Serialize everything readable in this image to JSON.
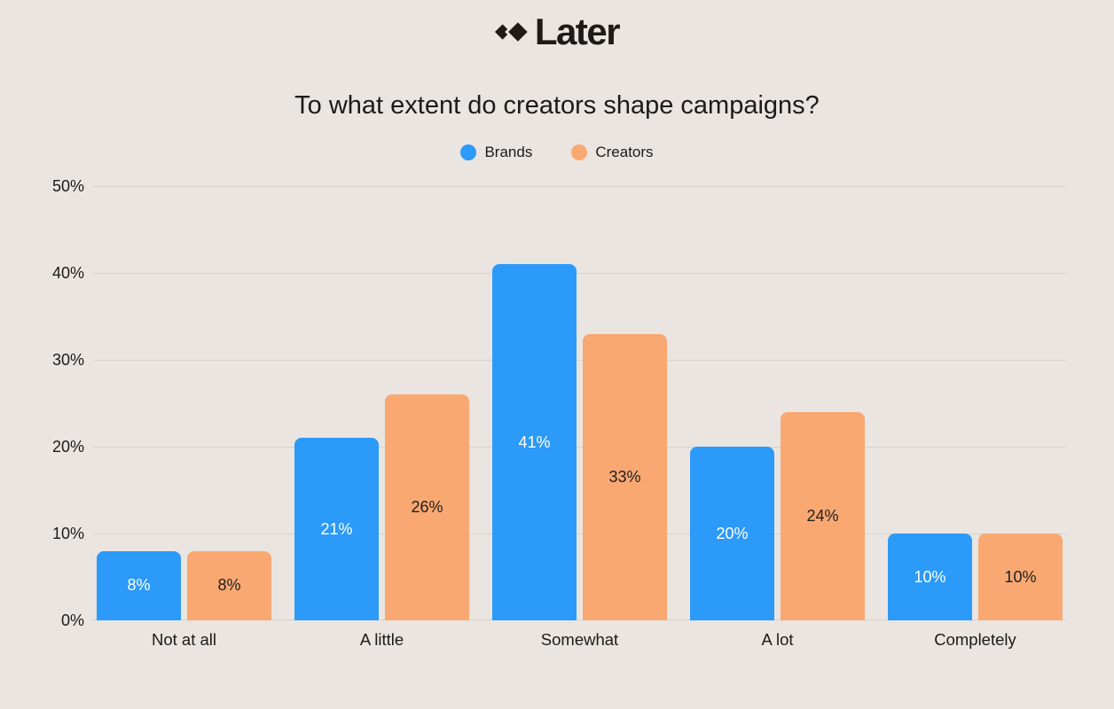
{
  "logo": {
    "text": "Later"
  },
  "theme": {
    "background": "#EAE5E1",
    "gridline": "#D7D2CE",
    "text": "#1B1B1B"
  },
  "chart_data": {
    "type": "bar",
    "title": "To what extent do creators shape campaigns?",
    "categories": [
      "Not at all",
      "A little",
      "Somewhat",
      "A lot",
      "Completely"
    ],
    "series": [
      {
        "name": "Brands",
        "color": "#2B9AF8",
        "label_color": "#FFFFFF",
        "values": [
          8,
          21,
          41,
          20,
          10
        ]
      },
      {
        "name": "Creators",
        "color": "#F9A872",
        "label_color": "#1F1F1F",
        "values": [
          8,
          26,
          33,
          24,
          10
        ]
      }
    ],
    "value_suffix": "%",
    "ylim": [
      0,
      50
    ],
    "yticks": [
      "0%",
      "10%",
      "20%",
      "30%",
      "40%",
      "50%"
    ],
    "grid": true,
    "legend_position": "top"
  }
}
